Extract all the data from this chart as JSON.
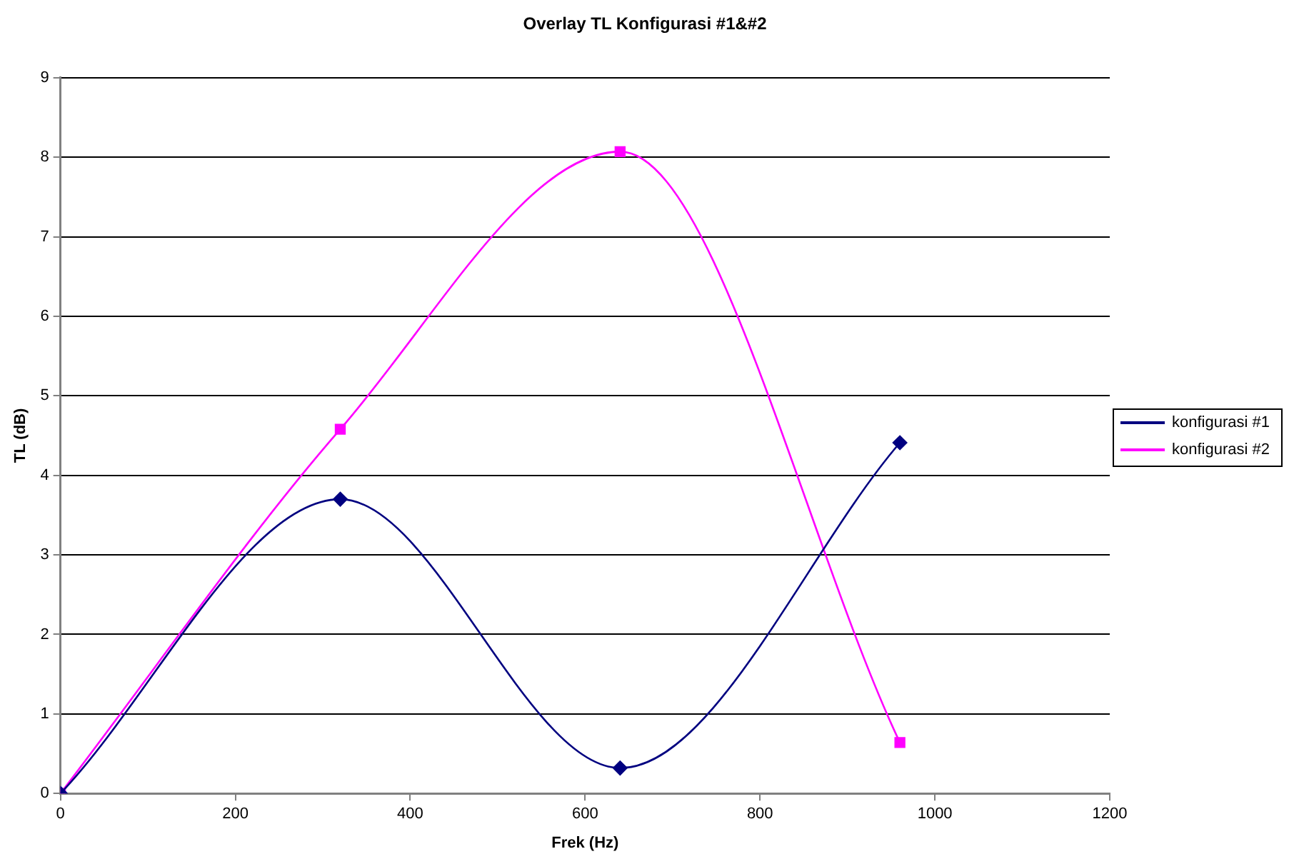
{
  "chart_data": {
    "type": "line",
    "title": "Overlay TL Konfigurasi #1&#2",
    "xlabel": "Frek (Hz)",
    "ylabel": "TL (dB)",
    "x": [
      0,
      320,
      640,
      960
    ],
    "series": [
      {
        "name": "konfigurasi #1",
        "color": "#000080",
        "marker": "diamond",
        "values": [
          0,
          3.7,
          0.32,
          4.41
        ]
      },
      {
        "name": "konfigurasi #2",
        "color": "#ff00ff",
        "marker": "square",
        "values": [
          0,
          4.58,
          8.07,
          0.64
        ]
      }
    ],
    "xlim": [
      0,
      1200
    ],
    "xticks": [
      0,
      200,
      400,
      600,
      800,
      1000,
      1200
    ],
    "ylim": [
      0,
      9
    ],
    "yticks": [
      0,
      1,
      2,
      3,
      4,
      5,
      6,
      7,
      8,
      9
    ],
    "grid": "y",
    "legend": "right",
    "line_style": "solid"
  }
}
